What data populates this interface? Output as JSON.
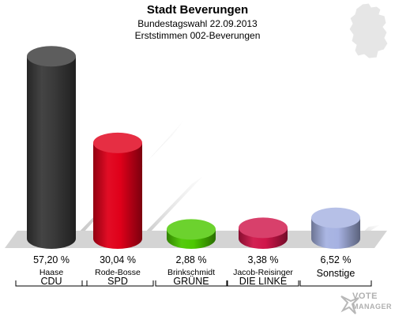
{
  "header": {
    "title": "Stadt Beverungen",
    "subtitle": "Bundestagswahl 22.09.2013",
    "subtitle2": "Erststimmen 002-Beverungen"
  },
  "logo": {
    "line1": "VOTE",
    "line2": "MANAGER"
  },
  "chart_data": {
    "type": "bar",
    "categories": [
      "CDU",
      "SPD",
      "GRÜNE",
      "DIE LINKE",
      "Sonstige"
    ],
    "candidates": [
      "Haase",
      "Rode-Bosse",
      "Brinkschmidt",
      "Jacob-Reisinger",
      ""
    ],
    "values": [
      57.2,
      30.04,
      2.88,
      3.38,
      6.52
    ],
    "value_labels": [
      "57,20 %",
      "30,04 %",
      "2,88 %",
      "3,38 %",
      "6,52 %"
    ],
    "colors": [
      "#3a3a3a",
      "#e0001a",
      "#4cc800",
      "#d0164a",
      "#a6b2e2"
    ],
    "ylim": [
      0,
      60
    ],
    "grid": false
  }
}
